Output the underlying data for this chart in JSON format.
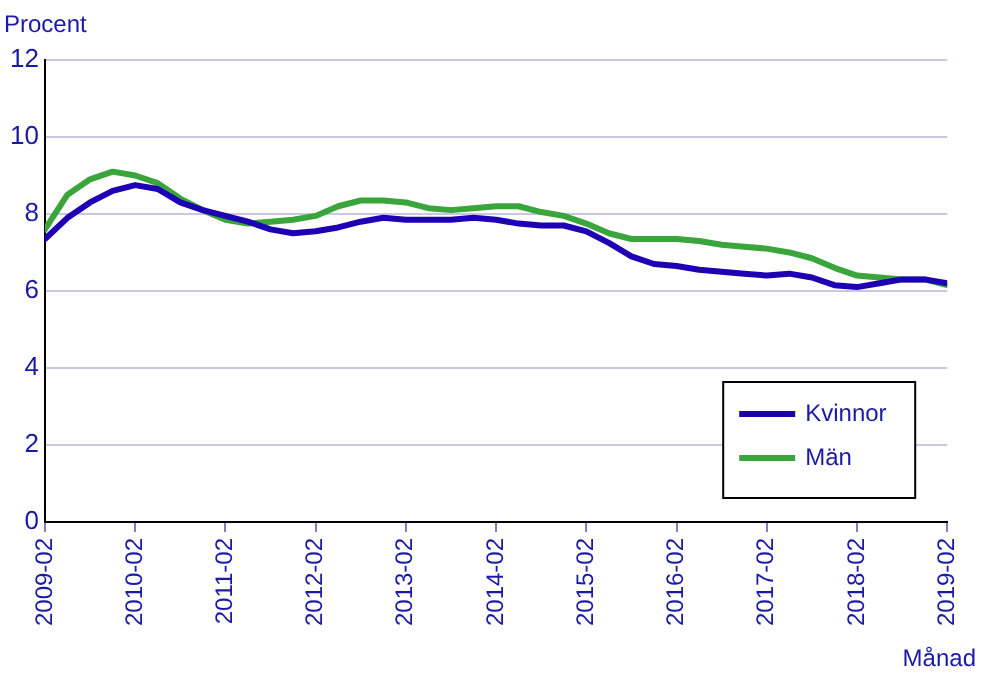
{
  "chart_data": {
    "type": "line",
    "ylabel": "Procent",
    "xlabel": "Månad",
    "x": [
      "2009-02",
      "2009-05",
      "2009-08",
      "2009-11",
      "2010-02",
      "2010-05",
      "2010-08",
      "2010-11",
      "2011-02",
      "2011-05",
      "2011-08",
      "2011-11",
      "2012-02",
      "2012-05",
      "2012-08",
      "2012-11",
      "2013-02",
      "2013-05",
      "2013-08",
      "2013-11",
      "2014-02",
      "2014-05",
      "2014-08",
      "2014-11",
      "2015-02",
      "2015-05",
      "2015-08",
      "2015-11",
      "2016-02",
      "2016-05",
      "2016-08",
      "2016-11",
      "2017-02",
      "2017-05",
      "2017-08",
      "2017-11",
      "2018-02",
      "2018-05",
      "2018-08",
      "2018-11",
      "2019-02"
    ],
    "series": [
      {
        "name": "Kvinnor",
        "color": "#1e00b4",
        "values": [
          7.35,
          7.9,
          8.3,
          8.6,
          8.75,
          8.65,
          8.3,
          8.1,
          7.95,
          7.8,
          7.6,
          7.5,
          7.55,
          7.65,
          7.8,
          7.9,
          7.85,
          7.85,
          7.85,
          7.9,
          7.85,
          7.75,
          7.7,
          7.7,
          7.55,
          7.25,
          6.9,
          6.7,
          6.65,
          6.55,
          6.5,
          6.45,
          6.4,
          6.45,
          6.35,
          6.15,
          6.1,
          6.2,
          6.3,
          6.3,
          6.2
        ]
      },
      {
        "name": "Män",
        "color": "#3aa53a",
        "values": [
          7.6,
          8.5,
          8.9,
          9.1,
          9.0,
          8.8,
          8.4,
          8.1,
          7.85,
          7.75,
          7.8,
          7.85,
          7.95,
          8.2,
          8.35,
          8.35,
          8.3,
          8.15,
          8.1,
          8.15,
          8.2,
          8.2,
          8.05,
          7.95,
          7.75,
          7.5,
          7.35,
          7.35,
          7.35,
          7.3,
          7.2,
          7.15,
          7.1,
          7.0,
          6.85,
          6.6,
          6.4,
          6.35,
          6.3,
          6.3,
          6.15
        ]
      }
    ],
    "xlim": [
      "2009-02",
      "2019-02"
    ],
    "xticks": [
      "2009-02",
      "2010-02",
      "2011-02",
      "2012-02",
      "2013-02",
      "2014-02",
      "2015-02",
      "2016-02",
      "2017-02",
      "2018-02",
      "2019-02"
    ],
    "ylim": [
      0,
      12
    ],
    "yticks": [
      0,
      2,
      4,
      6,
      8,
      10,
      12
    ],
    "grid": "y",
    "legend": "bottom right",
    "marker": "none",
    "line_style": "solid"
  }
}
